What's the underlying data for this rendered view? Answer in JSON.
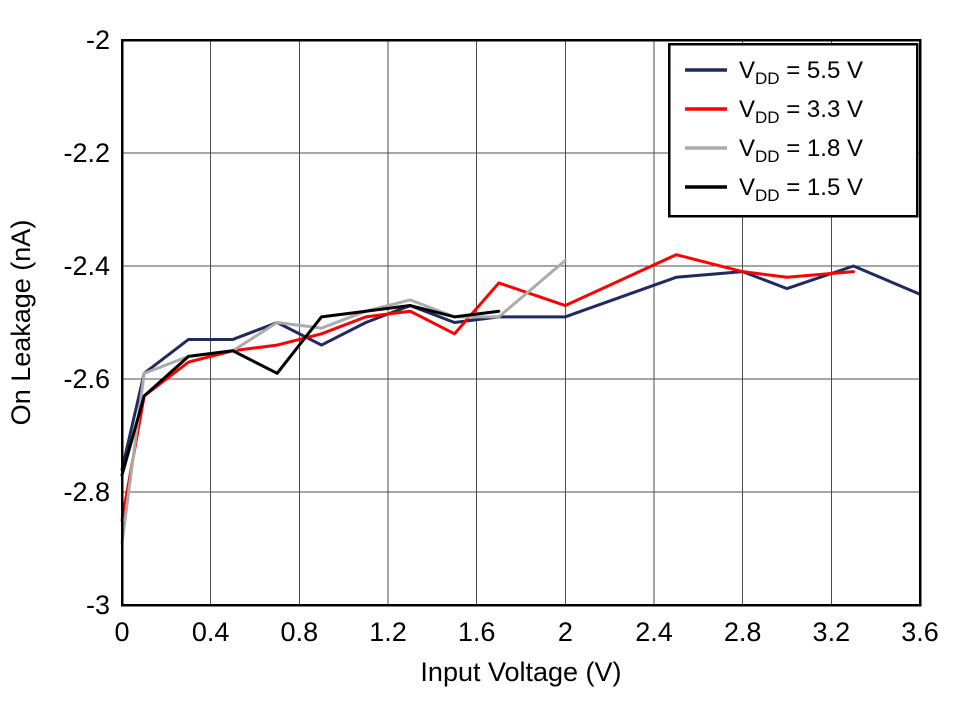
{
  "page": {
    "background": "#ffffff"
  },
  "chart_data": {
    "type": "line",
    "title": "",
    "xlabel": "Input Voltage (V)",
    "ylabel": "On Leakage (nA)",
    "xlim": [
      0,
      3.6
    ],
    "ylim": [
      -3,
      -2
    ],
    "xticks": [
      0,
      0.4,
      0.8,
      1.2,
      1.6,
      2,
      2.4,
      2.8,
      3.2,
      3.6
    ],
    "xtick_labels": [
      "0",
      "0.4",
      "0.8",
      "1.2",
      "1.6",
      "2",
      "2.4",
      "2.8",
      "3.2",
      "3.6"
    ],
    "yticks": [
      -3,
      -2.8,
      -2.6,
      -2.4,
      -2.2,
      -2
    ],
    "ytick_labels": [
      "-3",
      "-2.8",
      "-2.6",
      "-2.4",
      "-2.2",
      "-2"
    ],
    "grid": true,
    "grid_color": "#4d4d4d",
    "axis_color": "#000000",
    "legend_position": "top-right",
    "series": [
      {
        "name": "VDD = 5.5 V",
        "label_prefix": "V",
        "label_sub": "DD",
        "label_rest": " = 5.5 V",
        "color": "#202a5e",
        "x": [
          0,
          0.1,
          0.3,
          0.5,
          0.7,
          0.9,
          1.1,
          1.3,
          1.5,
          1.7,
          2.0,
          2.5,
          2.8,
          3.0,
          3.3,
          3.6
        ],
        "y": [
          -2.76,
          -2.59,
          -2.53,
          -2.53,
          -2.5,
          -2.54,
          -2.5,
          -2.47,
          -2.5,
          -2.49,
          -2.49,
          -2.42,
          -2.41,
          -2.44,
          -2.4,
          -2.45
        ]
      },
      {
        "name": "VDD = 3.3 V",
        "label_prefix": "V",
        "label_sub": "DD",
        "label_rest": " = 3.3 V",
        "color": "#ff0000",
        "x": [
          0,
          0.1,
          0.3,
          0.5,
          0.7,
          0.9,
          1.1,
          1.3,
          1.5,
          1.7,
          2.0,
          2.5,
          2.8,
          3.0,
          3.3
        ],
        "y": [
          -2.85,
          -2.63,
          -2.57,
          -2.55,
          -2.54,
          -2.52,
          -2.49,
          -2.48,
          -2.52,
          -2.43,
          -2.47,
          -2.38,
          -2.41,
          -2.42,
          -2.41
        ]
      },
      {
        "name": "VDD = 1.8 V",
        "label_prefix": "V",
        "label_sub": "DD",
        "label_rest": " = 1.8 V",
        "color": "#ababab",
        "x": [
          0,
          0.1,
          0.3,
          0.5,
          0.7,
          0.9,
          1.1,
          1.3,
          1.5,
          1.7,
          2.0
        ],
        "y": [
          -2.89,
          -2.59,
          -2.56,
          -2.55,
          -2.5,
          -2.51,
          -2.48,
          -2.46,
          -2.49,
          -2.49,
          -2.39
        ]
      },
      {
        "name": "VDD = 1.5 V",
        "label_prefix": "V",
        "label_sub": "DD",
        "label_rest": " = 1.5 V",
        "color": "#000000",
        "x": [
          0,
          0.1,
          0.3,
          0.5,
          0.7,
          0.9,
          1.1,
          1.3,
          1.5,
          1.7
        ],
        "y": [
          -2.77,
          -2.63,
          -2.56,
          -2.55,
          -2.59,
          -2.49,
          -2.48,
          -2.47,
          -2.49,
          -2.48
        ]
      }
    ]
  }
}
